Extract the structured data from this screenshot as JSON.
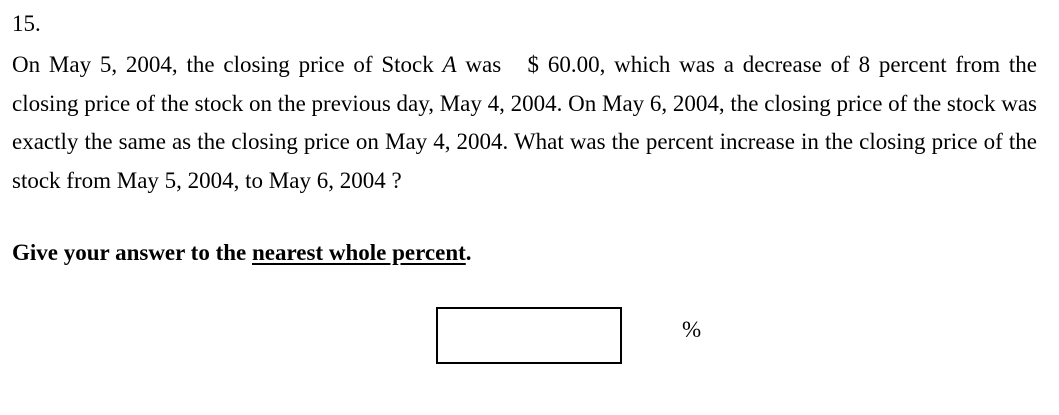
{
  "question": {
    "number": "15.",
    "text_part1": "On May 5, 2004, the closing price of Stock ",
    "stock_letter": "A",
    "text_part2": " was   $ 60.00, which was a decrease of 8 percent from the closing price of the stock on the previous day, May 4, 2004. On May 6, 2004, the closing price of the stock was exactly the same as the closing price on May 4, 2004. What was the percent increase in the closing price of the stock from May 5, 2004, to May 6, 2004 ?"
  },
  "instruction": {
    "prefix": "Give your answer to the ",
    "emphasis": "nearest whole percent",
    "suffix": "."
  },
  "answer": {
    "value": "",
    "unit": "%"
  }
}
